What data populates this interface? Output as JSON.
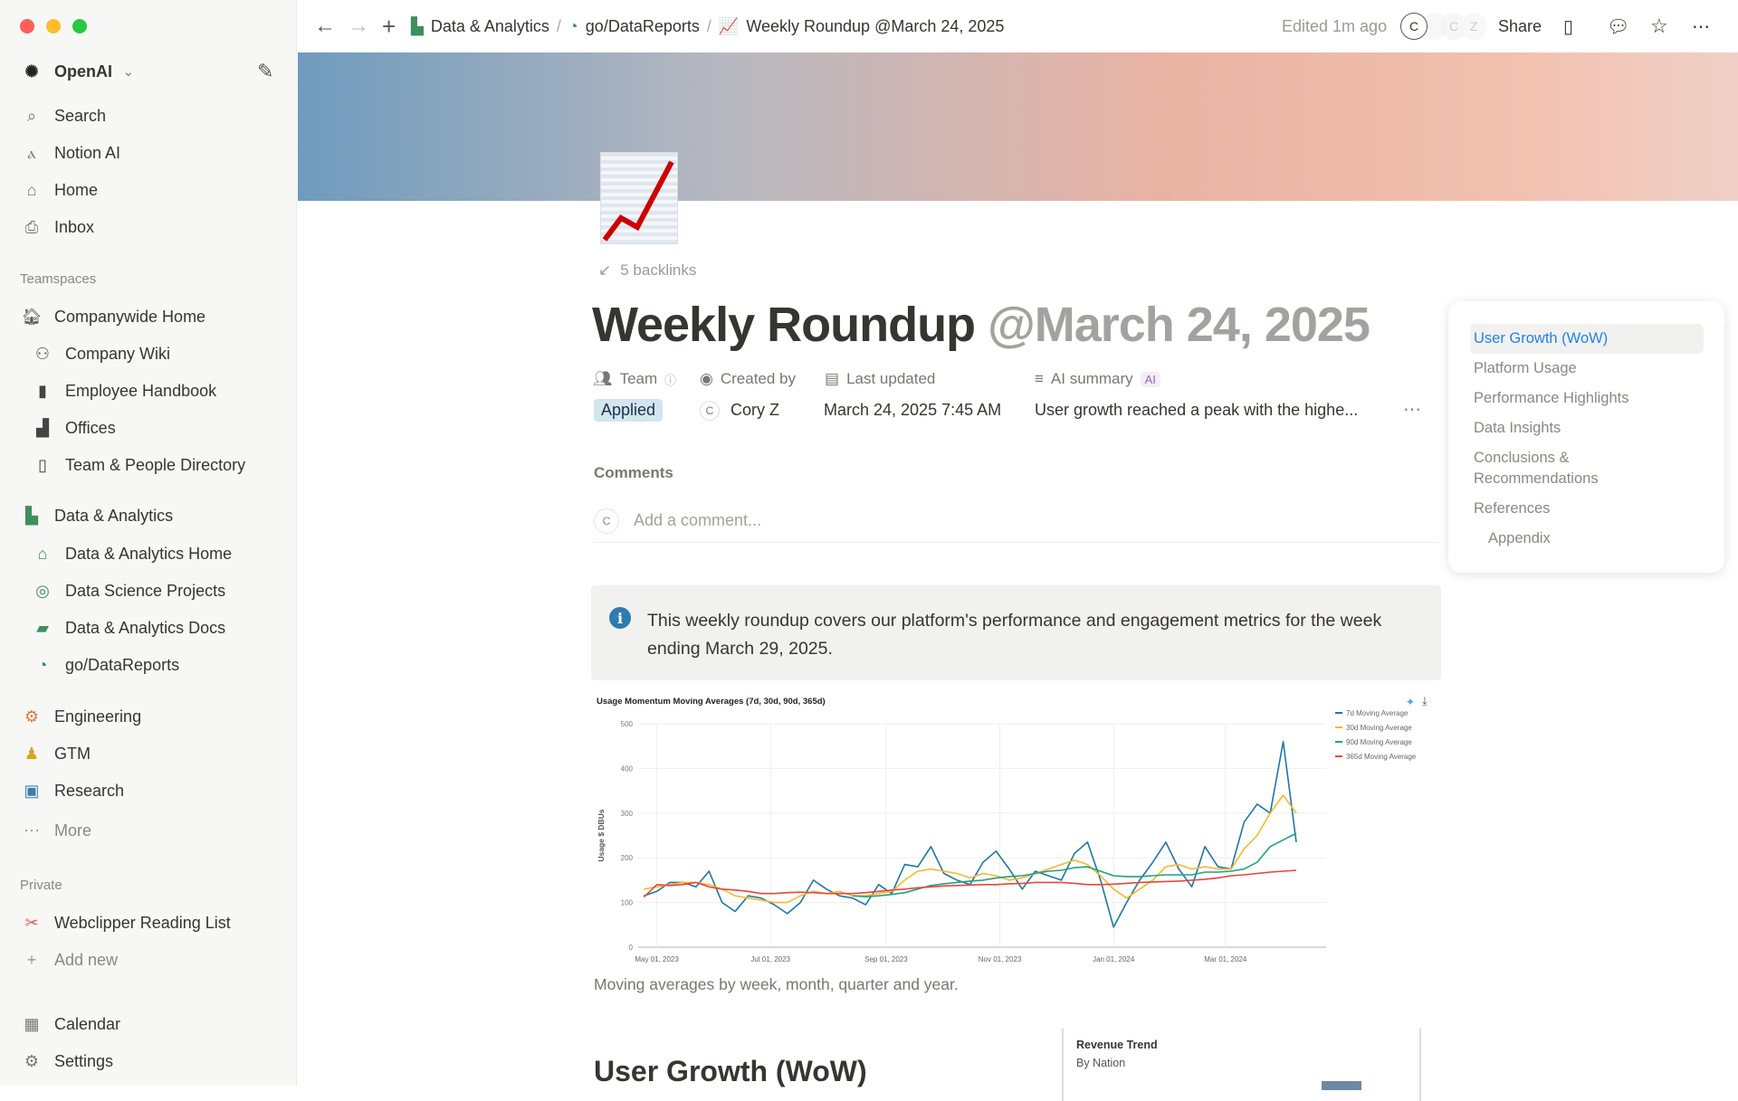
{
  "window": {
    "controls": {
      "close": "#ff5f57",
      "minimize": "#febc2e",
      "maximize": "#28c840"
    }
  },
  "sidebar": {
    "workspace": "OpenAI",
    "top": [
      {
        "label": "Search",
        "icon": "search-icon"
      },
      {
        "label": "Notion AI",
        "icon": "notion-ai-icon"
      },
      {
        "label": "Home",
        "icon": "home-icon"
      },
      {
        "label": "Inbox",
        "icon": "inbox-icon"
      }
    ],
    "teamspaces_label": "Teamspaces",
    "teamspaces": [
      {
        "label": "Companywide Home",
        "level": 0
      },
      {
        "label": "Company Wiki",
        "level": 1
      },
      {
        "label": "Employee Handbook",
        "level": 1
      },
      {
        "label": "Offices",
        "level": 1
      },
      {
        "label": "Team & People Directory",
        "level": 1
      },
      {
        "label": "Data & Analytics",
        "level": 0
      },
      {
        "label": "Data & Analytics Home",
        "level": 1
      },
      {
        "label": "Data Science Projects",
        "level": 1
      },
      {
        "label": "Data & Analytics Docs",
        "level": 1
      },
      {
        "label": "go/DataReports",
        "level": 1
      },
      {
        "label": "Engineering",
        "level": 0
      },
      {
        "label": "GTM",
        "level": 0
      },
      {
        "label": "Research",
        "level": 0
      },
      {
        "label": "More",
        "level": 0
      }
    ],
    "private_label": "Private",
    "private": [
      {
        "label": "Webclipper Reading List"
      },
      {
        "label": "Add new"
      }
    ],
    "bottom": [
      {
        "label": "Calendar"
      },
      {
        "label": "Settings"
      }
    ]
  },
  "topbar": {
    "breadcrumb": [
      "Data & Analytics",
      "go/DataReports",
      "Weekly Roundup @March 24, 2025"
    ],
    "edited": "Edited 1m ago",
    "avatars": [
      "C",
      "",
      "C",
      "Z"
    ],
    "share": "Share"
  },
  "page": {
    "backlinks": "5 backlinks",
    "title": "Weekly Roundup",
    "title_mention": "@March 24, 2025",
    "props": [
      {
        "label": "Team",
        "value": "Applied"
      },
      {
        "label": "Created by",
        "value": "Cory Z",
        "avatar": "C"
      },
      {
        "label": "Last updated",
        "value": "March 24, 2025 7:45 AM"
      },
      {
        "label": "AI summary",
        "badge": "AI",
        "value": "User growth reached a peak with the highe..."
      }
    ],
    "comments_label": "Comments",
    "comment_avatar": "C",
    "comment_placeholder": "Add a comment...",
    "callout": "This weekly roundup covers our platform's performance and engagement metrics for the week ending March 29, 2025.",
    "caption": "Moving averages by week, month, quarter and year.",
    "heading": "User Growth (WoW)",
    "card": {
      "title": "Revenue Trend",
      "subtitle": "By Nation"
    }
  },
  "toc": [
    "User Growth (WoW)",
    "Platform Usage",
    "Performance Highlights",
    "Data Insights",
    "Conclusions & Recommendations",
    "References",
    "Appendix"
  ],
  "chart_data": {
    "type": "line",
    "title": "Usage Momentum Moving Averages (7d, 30d, 90d, 365d)",
    "xlabel": "",
    "ylabel": "Usage $ DBUs",
    "ylim": [
      0,
      500
    ],
    "yticks": [
      0,
      100,
      200,
      300,
      400,
      500
    ],
    "xlim": [
      "2023-04-21",
      "2024-04-24"
    ],
    "xticks": [
      {
        "date": "2023-05-01",
        "label": "May 01, 2023"
      },
      {
        "date": "2023-07-01",
        "label": "Jul 01, 2023"
      },
      {
        "date": "2023-09-01",
        "label": "Sep 01, 2023"
      },
      {
        "date": "2023-11-01",
        "label": "Nov 01, 2023"
      },
      {
        "date": "2024-01-01",
        "label": "Jan 01, 2024"
      },
      {
        "date": "2024-03-01",
        "label": "Mar 01, 2024"
      }
    ],
    "grid": true,
    "legend": "top-right",
    "x": [
      "2023-04-24",
      "2023-05-01",
      "2023-05-08",
      "2023-05-15",
      "2023-05-22",
      "2023-05-29",
      "2023-06-05",
      "2023-06-12",
      "2023-06-19",
      "2023-06-26",
      "2023-07-03",
      "2023-07-10",
      "2023-07-17",
      "2023-07-24",
      "2023-07-31",
      "2023-08-07",
      "2023-08-14",
      "2023-08-21",
      "2023-08-28",
      "2023-09-04",
      "2023-09-11",
      "2023-09-18",
      "2023-09-25",
      "2023-10-02",
      "2023-10-09",
      "2023-10-16",
      "2023-10-23",
      "2023-10-30",
      "2023-11-06",
      "2023-11-13",
      "2023-11-20",
      "2023-11-27",
      "2023-12-04",
      "2023-12-11",
      "2023-12-18",
      "2023-12-25",
      "2024-01-01",
      "2024-01-08",
      "2024-01-15",
      "2024-01-22",
      "2024-01-29",
      "2024-02-05",
      "2024-02-12",
      "2024-02-19",
      "2024-02-26",
      "2024-03-04",
      "2024-03-11",
      "2024-03-18",
      "2024-03-25",
      "2024-04-01",
      "2024-04-08"
    ],
    "series": [
      {
        "name": "7d Moving Average",
        "color": "#1f77a4",
        "values": [
          115,
          125,
          145,
          145,
          135,
          170,
          100,
          80,
          115,
          110,
          95,
          75,
          100,
          150,
          130,
          115,
          110,
          95,
          140,
          120,
          185,
          180,
          225,
          165,
          150,
          140,
          190,
          215,
          175,
          130,
          170,
          160,
          150,
          210,
          235,
          150,
          45,
          100,
          150,
          190,
          235,
          175,
          135,
          225,
          180,
          175,
          280,
          320,
          300,
          460,
          235
        ]
      },
      {
        "name": "30d Moving Average",
        "color": "#f5b82e",
        "values": [
          130,
          135,
          140,
          145,
          145,
          140,
          130,
          115,
          110,
          105,
          100,
          100,
          115,
          125,
          120,
          125,
          115,
          115,
          120,
          125,
          150,
          170,
          175,
          170,
          165,
          155,
          165,
          160,
          150,
          155,
          165,
          175,
          185,
          195,
          185,
          160,
          130,
          110,
          130,
          150,
          180,
          185,
          175,
          180,
          175,
          175,
          220,
          250,
          300,
          340,
          300
        ]
      },
      {
        "name": "90d Moving Average",
        "color": "#20a27a",
        "values": [
          null,
          null,
          null,
          null,
          null,
          null,
          null,
          null,
          null,
          null,
          null,
          null,
          null,
          null,
          null,
          null,
          115,
          113,
          115,
          118,
          122,
          130,
          138,
          142,
          145,
          148,
          150,
          155,
          158,
          160,
          165,
          170,
          172,
          178,
          180,
          170,
          160,
          158,
          158,
          160,
          162,
          162,
          162,
          168,
          168,
          170,
          175,
          190,
          225,
          240,
          255
        ]
      },
      {
        "name": "365d Moving Average",
        "color": "#e8463a",
        "values": [
          112,
          140,
          138,
          140,
          145,
          135,
          130,
          128,
          125,
          120,
          120,
          122,
          123,
          122,
          120,
          120,
          120,
          122,
          125,
          128,
          130,
          133,
          135,
          137,
          138,
          139,
          140,
          140,
          142,
          143,
          145,
          145,
          145,
          143,
          140,
          140,
          141,
          143,
          145,
          146,
          147,
          148,
          150,
          152,
          155,
          160,
          162,
          165,
          168,
          170,
          172
        ]
      }
    ]
  }
}
